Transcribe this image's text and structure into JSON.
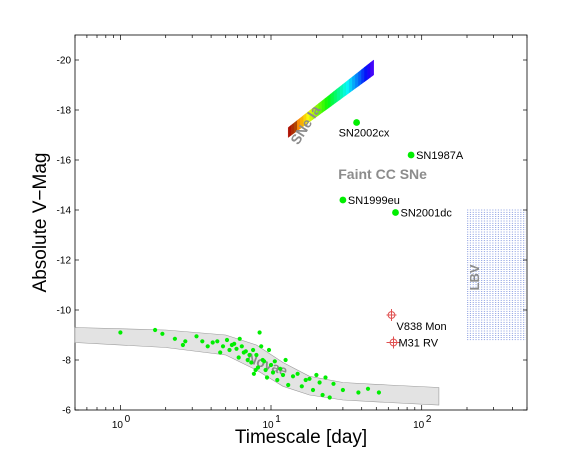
{
  "chart_data": {
    "type": "scatter",
    "xlabel": "Timescale [day]",
    "ylabel": "Absolute V−Mag",
    "xscale": "log",
    "xlim": [
      0.5,
      500
    ],
    "ylim": [
      -6,
      -21
    ],
    "y_inverted": true,
    "x_ticks": [
      {
        "value": 1,
        "base": "10",
        "exp": "0"
      },
      {
        "value": 10,
        "base": "10",
        "exp": "1"
      },
      {
        "value": 100,
        "base": "10",
        "exp": "2"
      }
    ],
    "y_ticks": [
      "-20",
      "-18",
      "-16",
      "-14",
      "-12",
      "-10",
      "-8",
      "-6"
    ],
    "grid": false,
    "legend": "none",
    "colors": {
      "supernova_points": "#00ee00",
      "nova_points": "#00ee00",
      "red_novae": "#e05050",
      "nova_band": "#e3e3e3",
      "lbv_region": "#3355cc",
      "region_labels": "#8c8c8c"
    },
    "named_points": [
      {
        "label": "SN2002cx",
        "x": 37,
        "y": -17.5
      },
      {
        "label": "SN1987A",
        "x": 85,
        "y": -16.2
      },
      {
        "label": "SN1999eu",
        "x": 30,
        "y": -14.4
      },
      {
        "label": "SN2001dc",
        "x": 67,
        "y": -13.9
      }
    ],
    "red_novae": [
      {
        "label": "V838 Mon",
        "x": 63,
        "y": -9.8
      },
      {
        "label": "M31 RV",
        "x": 65,
        "y": -8.7
      }
    ],
    "region_labels": [
      {
        "text": "SNe Ia",
        "region": "sne_ia"
      },
      {
        "text": "Faint CC SNe",
        "region": "faint_cc"
      },
      {
        "text": "LBV",
        "region": "lbv"
      },
      {
        "text": "Novae",
        "region": "novae"
      }
    ],
    "sne_ia_band": {
      "x_range": [
        13,
        48
      ],
      "y_upper_start": -17.3,
      "y_upper_end": -20.0,
      "y_lower_start": -16.9,
      "y_lower_end": -19.4
    },
    "lbv_region": {
      "x": [
        200,
        500
      ],
      "y": [
        -8.8,
        -14
      ]
    },
    "nova_band": {
      "upper": [
        [
          0.5,
          -9.3
        ],
        [
          2,
          -9.2
        ],
        [
          5,
          -9.0
        ],
        [
          8,
          -8.6
        ],
        [
          12,
          -7.9
        ],
        [
          18,
          -7.35
        ],
        [
          30,
          -7.1
        ],
        [
          60,
          -7.0
        ],
        [
          130,
          -6.9
        ]
      ],
      "lower": [
        [
          0.5,
          -8.7
        ],
        [
          2,
          -8.5
        ],
        [
          5,
          -8.2
        ],
        [
          8,
          -7.6
        ],
        [
          12,
          -6.95
        ],
        [
          18,
          -6.6
        ],
        [
          30,
          -6.4
        ],
        [
          60,
          -6.3
        ],
        [
          130,
          -6.2
        ]
      ]
    },
    "nova_points": [
      [
        1.0,
        -9.1
      ],
      [
        1.7,
        -9.2
      ],
      [
        1.9,
        -9.05
      ],
      [
        2.3,
        -8.85
      ],
      [
        2.6,
        -8.6
      ],
      [
        2.7,
        -8.75
      ],
      [
        3.2,
        -8.95
      ],
      [
        3.5,
        -8.75
      ],
      [
        3.8,
        -8.55
      ],
      [
        4.1,
        -8.7
      ],
      [
        4.4,
        -8.75
      ],
      [
        4.6,
        -8.3
      ],
      [
        4.8,
        -8.55
      ],
      [
        5.1,
        -8.8
      ],
      [
        5.3,
        -8.4
      ],
      [
        5.5,
        -8.6
      ],
      [
        5.7,
        -8.65
      ],
      [
        5.9,
        -8.45
      ],
      [
        6.1,
        -8.1
      ],
      [
        6.2,
        -8.85
      ],
      [
        6.4,
        -8.55
      ],
      [
        6.6,
        -8.3
      ],
      [
        6.8,
        -8.35
      ],
      [
        7.0,
        -8.0
      ],
      [
        7.2,
        -8.2
      ],
      [
        7.4,
        -7.9
      ],
      [
        7.6,
        -8.4
      ],
      [
        7.7,
        -7.45
      ],
      [
        7.9,
        -7.6
      ],
      [
        8.0,
        -8.2
      ],
      [
        8.2,
        -7.7
      ],
      [
        8.4,
        -9.1
      ],
      [
        8.6,
        -8.55
      ],
      [
        8.8,
        -8.0
      ],
      [
        9.0,
        -7.95
      ],
      [
        9.2,
        -7.6
      ],
      [
        9.4,
        -7.3
      ],
      [
        9.7,
        -8.4
      ],
      [
        10.0,
        -7.8
      ],
      [
        10.3,
        -7.5
      ],
      [
        10.6,
        -7.95
      ],
      [
        11.0,
        -7.2
      ],
      [
        11.5,
        -7.65
      ],
      [
        12.0,
        -7.4
      ],
      [
        12.5,
        -8.0
      ],
      [
        13.0,
        -7.0
      ],
      [
        14.0,
        -7.35
      ],
      [
        15.0,
        -7.45
      ],
      [
        16.0,
        -6.95
      ],
      [
        17.0,
        -7.2
      ],
      [
        18.0,
        -7.25
      ],
      [
        19.0,
        -6.8
      ],
      [
        20.0,
        -7.4
      ],
      [
        21.0,
        -7.1
      ],
      [
        22.0,
        -6.6
      ],
      [
        23.0,
        -7.3
      ],
      [
        24.5,
        -6.5
      ],
      [
        26.0,
        -7.05
      ],
      [
        30.0,
        -6.8
      ],
      [
        38.0,
        -6.7
      ],
      [
        44.0,
        -6.85
      ],
      [
        52.0,
        -6.7
      ]
    ]
  }
}
